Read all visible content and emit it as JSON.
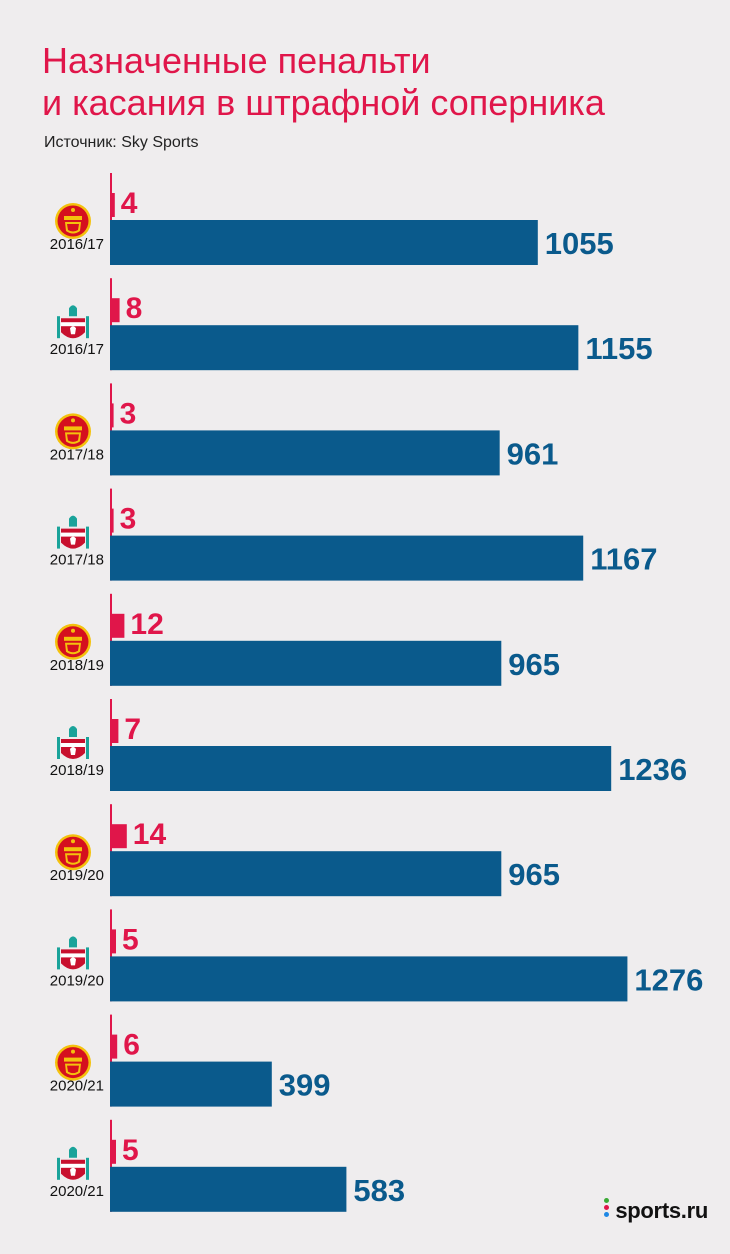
{
  "title_line1": "Назначенные пенальти",
  "title_line2": "и касания в штрафной соперника",
  "source": "Источник: Sky Sports",
  "brand": "sports.ru",
  "colors": {
    "accent": "#e0164a",
    "bar": "#0a5a8c",
    "background": "#efedee",
    "manutd": "#d5101e",
    "liverpool": "#c8102e"
  },
  "chart_data": {
    "type": "bar",
    "orientation": "horizontal",
    "series": [
      {
        "values": [
          4,
          8,
          3,
          3,
          12,
          7,
          14,
          5,
          6,
          5
        ]
      },
      {
        "values": [
          1055,
          1155,
          961,
          1167,
          965,
          1236,
          965,
          1276,
          399,
          583
        ]
      }
    ],
    "rows": [
      {
        "season": "2016/17",
        "club_icon": "manchester-united-crest-icon",
        "penalties": 4,
        "touches": 1055
      },
      {
        "season": "2016/17",
        "club_icon": "liverpool-crest-icon",
        "penalties": 8,
        "touches": 1155
      },
      {
        "season": "2017/18",
        "club_icon": "manchester-united-crest-icon",
        "penalties": 3,
        "touches": 961
      },
      {
        "season": "2017/18",
        "club_icon": "liverpool-crest-icon",
        "penalties": 3,
        "touches": 1167
      },
      {
        "season": "2018/19",
        "club_icon": "manchester-united-crest-icon",
        "penalties": 12,
        "touches": 965
      },
      {
        "season": "2018/19",
        "club_icon": "liverpool-crest-icon",
        "penalties": 7,
        "touches": 1236
      },
      {
        "season": "2019/20",
        "club_icon": "manchester-united-crest-icon",
        "penalties": 14,
        "touches": 965
      },
      {
        "season": "2019/20",
        "club_icon": "liverpool-crest-icon",
        "penalties": 5,
        "touches": 1276
      },
      {
        "season": "2020/21",
        "club_icon": "manchester-united-crest-icon",
        "penalties": 6,
        "touches": 399
      },
      {
        "season": "2020/21",
        "club_icon": "liverpool-crest-icon",
        "penalties": 5,
        "touches": 583
      }
    ]
  }
}
